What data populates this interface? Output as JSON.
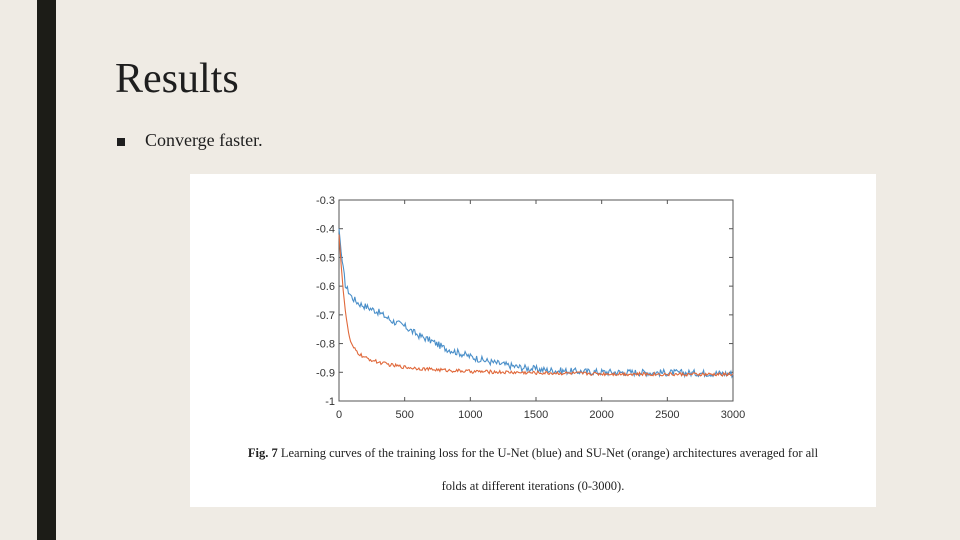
{
  "slide": {
    "title": "Results",
    "bullet": "Converge faster."
  },
  "figure": {
    "caption_label": "Fig. 7",
    "caption_line1": " Learning curves of the training loss for the U-Net (blue) and SU-Net (orange) architectures averaged for all",
    "caption_line2": "folds at different iterations (0-3000)."
  },
  "chart_data": {
    "type": "line",
    "xlim": [
      0,
      3000
    ],
    "ylim": [
      -1,
      -0.3
    ],
    "xticks": [
      0,
      500,
      1000,
      1500,
      2000,
      2500,
      3000
    ],
    "yticks": [
      -0.3,
      -0.4,
      -0.5,
      -0.6,
      -0.7,
      -0.8,
      -0.9,
      -1
    ],
    "grid": false,
    "colors": {
      "blue": "#4a8fc9",
      "orange": "#e0683a"
    },
    "series": [
      {
        "color": "blue",
        "x": [
          0,
          20,
          50,
          100,
          150,
          200,
          250,
          300,
          400,
          500,
          600,
          700,
          800,
          900,
          1000,
          1100,
          1200,
          1300,
          1400,
          1500,
          1600,
          1700,
          1800,
          1900,
          2000,
          2200,
          2400,
          2600,
          2800,
          3000
        ],
        "y": [
          -0.4,
          -0.5,
          -0.6,
          -0.64,
          -0.66,
          -0.67,
          -0.68,
          -0.69,
          -0.72,
          -0.74,
          -0.77,
          -0.79,
          -0.815,
          -0.83,
          -0.845,
          -0.858,
          -0.868,
          -0.877,
          -0.884,
          -0.889,
          -0.893,
          -0.895,
          -0.897,
          -0.898,
          -0.899,
          -0.9,
          -0.901,
          -0.902,
          -0.903,
          -0.905
        ]
      },
      {
        "color": "orange",
        "x": [
          0,
          20,
          40,
          60,
          80,
          100,
          150,
          200,
          300,
          400,
          500,
          700,
          1000,
          1500,
          2000,
          2500,
          3000
        ],
        "y": [
          -0.42,
          -0.55,
          -0.65,
          -0.73,
          -0.78,
          -0.81,
          -0.835,
          -0.85,
          -0.865,
          -0.875,
          -0.882,
          -0.89,
          -0.897,
          -0.902,
          -0.905,
          -0.907,
          -0.908
        ]
      }
    ]
  }
}
